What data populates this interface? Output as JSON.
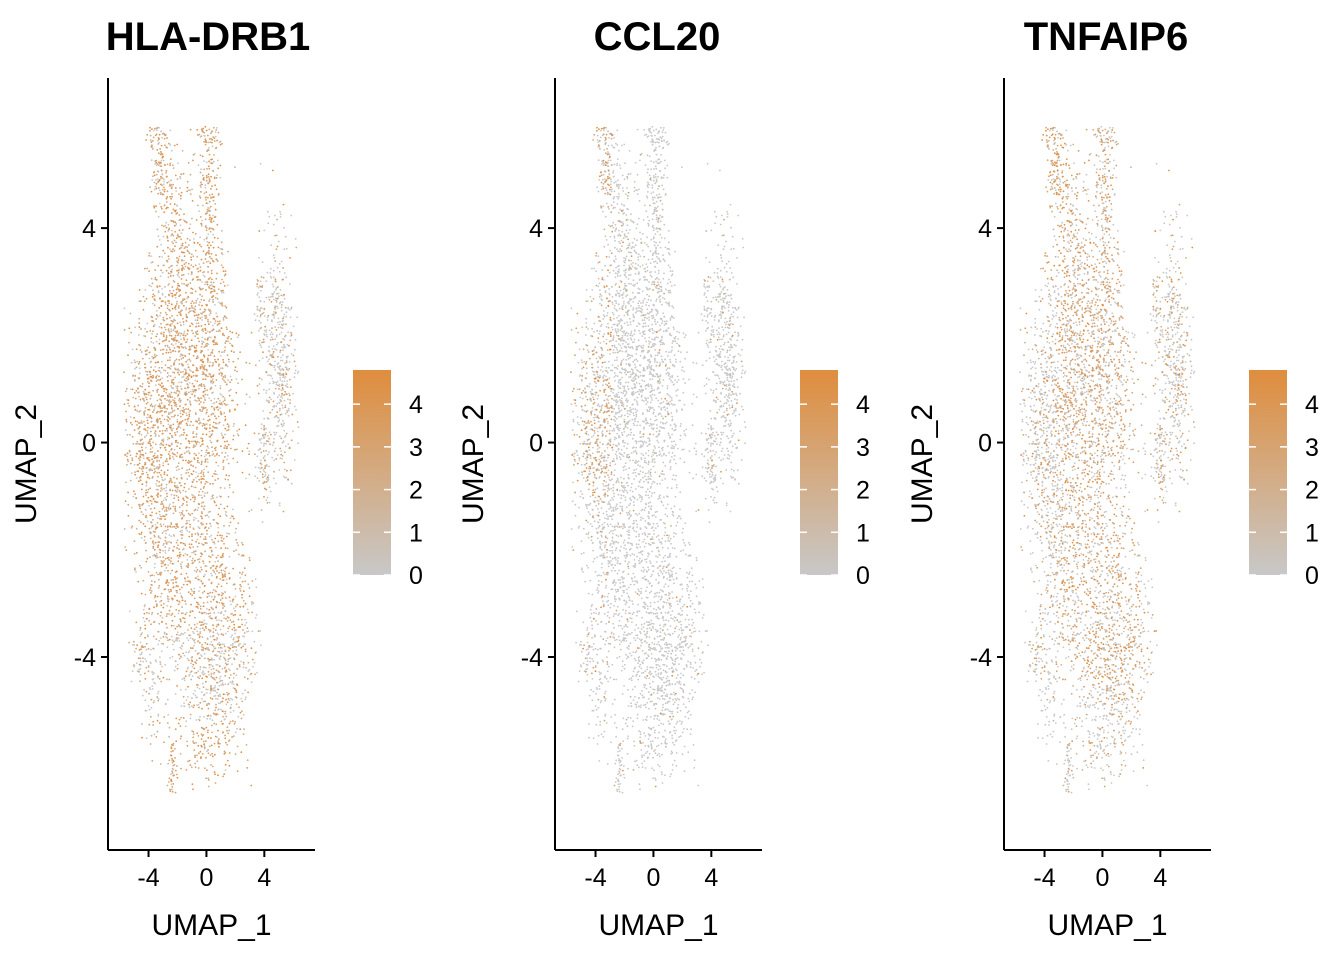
{
  "colors": {
    "low": "#c8c8c8",
    "high": "#df8d3d",
    "axis": "#000000",
    "background": "#ffffff"
  },
  "chart_data": [
    {
      "type": "scatter",
      "title": "HLA-DRB1",
      "xlabel": "UMAP_1",
      "ylabel": "UMAP_2",
      "xlim": [
        -6.8,
        7.5
      ],
      "ylim": [
        -7.6,
        6.8
      ],
      "xticks": [
        "-4",
        "0",
        "4"
      ],
      "yticks": [
        "-4",
        "0",
        "4"
      ],
      "legend": {
        "position": "right",
        "labels": [
          "0",
          "1",
          "2",
          "3",
          "4"
        ],
        "range": [
          0,
          4.8
        ]
      },
      "grid": false,
      "expression_pattern": {
        "mode": "broad",
        "strength": 0.78
      }
    },
    {
      "type": "scatter",
      "title": "CCL20",
      "xlabel": "UMAP_1",
      "ylabel": "UMAP_2",
      "xlim": [
        -6.8,
        7.5
      ],
      "ylim": [
        -7.6,
        6.8
      ],
      "xticks": [
        "-4",
        "0",
        "4"
      ],
      "yticks": [
        "-4",
        "0",
        "4"
      ],
      "legend": {
        "position": "right",
        "labels": [
          "0",
          "1",
          "2",
          "3",
          "4"
        ],
        "range": [
          0,
          4.8
        ]
      },
      "grid": false,
      "expression_pattern": {
        "mode": "left-edge",
        "strength": 0.35
      }
    },
    {
      "type": "scatter",
      "title": "TNFAIP6",
      "xlabel": "UMAP_1",
      "ylabel": "UMAP_2",
      "xlim": [
        -6.8,
        7.5
      ],
      "ylim": [
        -7.6,
        6.8
      ],
      "xticks": [
        "-4",
        "0",
        "4"
      ],
      "yticks": [
        "-4",
        "0",
        "4"
      ],
      "legend": {
        "position": "right",
        "labels": [
          "0",
          "1",
          "2",
          "3",
          "4"
        ],
        "range": [
          0,
          4.8
        ]
      },
      "grid": false,
      "expression_pattern": {
        "mode": "center",
        "strength": 0.6
      }
    }
  ]
}
